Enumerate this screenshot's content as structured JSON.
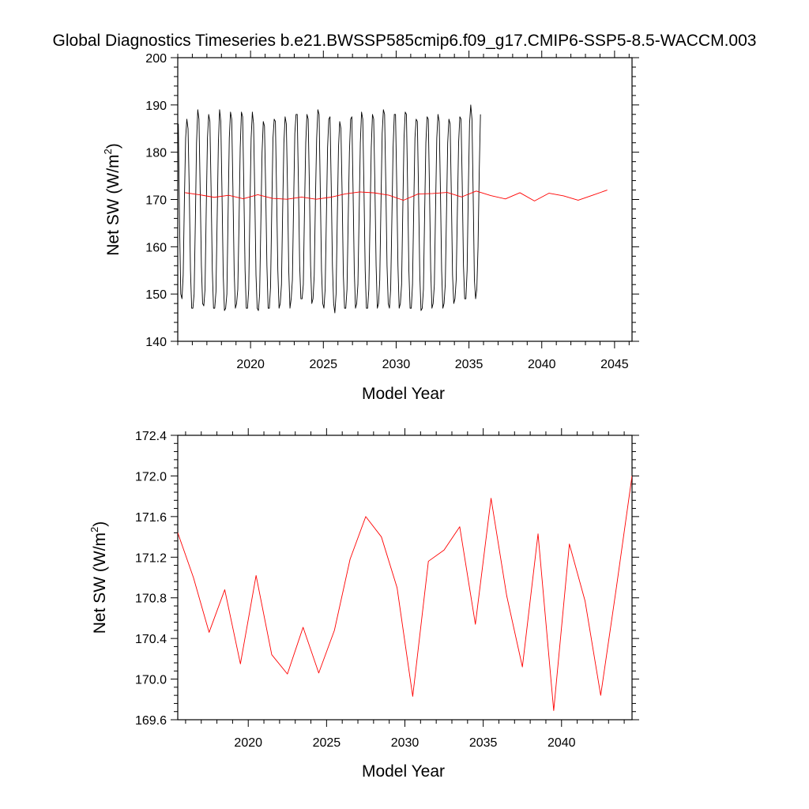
{
  "title": "Global Diagnostics Timeseries b.e21.BWSSP585cmip6.f09_g17.CMIP6-SSP5-8.5-WACCM.003",
  "chart_data": [
    {
      "type": "line",
      "xlabel": "Model Year",
      "ylabel_main": "Net SW (W/m",
      "ylabel_sup": "2",
      "ylabel_close": ")",
      "xlim": [
        2015,
        2046.2
      ],
      "ylim": [
        140,
        200
      ],
      "xticks": [
        2020,
        2025,
        2030,
        2035,
        2040,
        2045
      ],
      "yticks": [
        140,
        150,
        160,
        170,
        180,
        190,
        200
      ],
      "grid": false,
      "series": [
        {
          "color": "#000000",
          "x_start": 2015.04,
          "x_step": 0.083333,
          "values": [
            186.0,
            165.0,
            150.0,
            149.0,
            154.0,
            170.0,
            183.0,
            187.0,
            185.0,
            172.0,
            155.0,
            147.0,
            147.0,
            150.0,
            165.0,
            182.0,
            189.0,
            187.0,
            172.0,
            156.0,
            148.0,
            147.5,
            151.0,
            168.0,
            183.0,
            188.0,
            186.5,
            172.0,
            155.0,
            147.0,
            147.0,
            150.5,
            166.0,
            182.0,
            189.0,
            186.5,
            171.0,
            154.0,
            146.5,
            147.0,
            150.0,
            167.0,
            183.0,
            188.5,
            187.0,
            172.0,
            155.0,
            147.0,
            148.0,
            151.0,
            165.0,
            181.0,
            188.5,
            187.5,
            172.0,
            155.0,
            147.0,
            147.0,
            151.0,
            168.0,
            183.0,
            188.5,
            186.0,
            171.0,
            154.0,
            147.0,
            146.5,
            150.0,
            165.0,
            180.0,
            186.5,
            185.5,
            172.0,
            156.0,
            147.0,
            147.0,
            151.5,
            168.0,
            183.0,
            187.0,
            186.5,
            171.0,
            155.0,
            147.0,
            148.0,
            152.0,
            168.0,
            182.0,
            187.5,
            186.0,
            172.0,
            155.0,
            147.0,
            149.0,
            153.0,
            169.0,
            184.0,
            188.0,
            188.0,
            173.0,
            156.0,
            149.0,
            149.0,
            152.0,
            168.0,
            182.0,
            188.0,
            187.0,
            173.0,
            156.0,
            148.0,
            149.0,
            154.0,
            170.0,
            183.0,
            189.0,
            188.0,
            172.0,
            155.0,
            148.0,
            147.0,
            151.0,
            166.0,
            181.0,
            187.0,
            187.5,
            173.0,
            156.0,
            148.0,
            146.0,
            150.0,
            166.0,
            181.0,
            186.5,
            185.0,
            171.0,
            154.0,
            147.0,
            147.0,
            151.0,
            166.0,
            180.0,
            187.0,
            187.5,
            172.0,
            155.0,
            147.0,
            148.0,
            152.0,
            167.0,
            182.0,
            188.5,
            187.0,
            172.0,
            155.0,
            147.0,
            147.0,
            151.0,
            166.0,
            181.0,
            188.0,
            187.0,
            173.0,
            156.0,
            147.0,
            148.0,
            153.0,
            169.0,
            184.0,
            189.0,
            188.0,
            173.0,
            156.0,
            148.0,
            147.0,
            151.0,
            166.0,
            181.0,
            188.0,
            188.0,
            173.0,
            156.0,
            147.0,
            148.0,
            152.0,
            168.0,
            183.0,
            188.5,
            188.0,
            172.0,
            155.0,
            147.0,
            147.0,
            152.0,
            168.0,
            183.0,
            187.0,
            186.5,
            171.0,
            154.0,
            146.5,
            147.0,
            151.0,
            167.0,
            182.0,
            187.5,
            187.0,
            172.0,
            155.0,
            147.0,
            148.0,
            152.0,
            168.0,
            183.0,
            188.0,
            186.5,
            172.0,
            155.0,
            147.0,
            148.0,
            152.0,
            167.0,
            182.0,
            187.0,
            186.0,
            171.0,
            154.0,
            148.0,
            149.0,
            153.0,
            168.0,
            182.0,
            187.5,
            187.0,
            173.0,
            156.0,
            149.0,
            149.0,
            155.0,
            172.0,
            186.0,
            190.0,
            187.0,
            171.0,
            153.0,
            149.0,
            151.0,
            160.0,
            176.0,
            188.0
          ]
        },
        {
          "color": "#ff0000",
          "x": [
            2015.5,
            2016.5,
            2017.5,
            2018.5,
            2019.5,
            2020.5,
            2021.5,
            2022.5,
            2023.5,
            2024.5,
            2025.5,
            2026.5,
            2027.5,
            2028.5,
            2029.5,
            2030.5,
            2031.5,
            2032.5,
            2033.5,
            2034.5,
            2035.5,
            2036.5,
            2037.5,
            2038.5,
            2039.5,
            2040.5,
            2041.5,
            2042.5,
            2043.5,
            2044.5
          ],
          "values": [
            171.44,
            171.0,
            170.46,
            170.88,
            170.15,
            171.02,
            170.24,
            170.05,
            170.51,
            170.06,
            170.48,
            171.18,
            171.6,
            171.4,
            170.9,
            169.83,
            171.16,
            171.27,
            171.5,
            170.54,
            171.78,
            170.82,
            170.12,
            171.43,
            169.69,
            171.33,
            170.77,
            169.84,
            170.9,
            172.0
          ]
        }
      ]
    },
    {
      "type": "line",
      "xlabel": "Model Year",
      "ylabel_main": "Net SW (W/m",
      "ylabel_sup": "2",
      "ylabel_close": ")",
      "xlim": [
        2015.5,
        2044.5
      ],
      "ylim": [
        169.6,
        172.4
      ],
      "xticks": [
        2020,
        2025,
        2030,
        2035,
        2040
      ],
      "yticks": [
        169.6,
        170.0,
        170.4,
        170.8,
        171.2,
        171.6,
        172.0,
        172.4
      ],
      "ytick_labels": [
        "169.6",
        "170.0",
        "170.4",
        "170.8",
        "171.2",
        "171.6",
        "172.0",
        "172.4"
      ],
      "grid": false,
      "series": [
        {
          "color": "#ff0000",
          "x": [
            2015.5,
            2016.5,
            2017.5,
            2018.5,
            2019.5,
            2020.5,
            2021.5,
            2022.5,
            2023.5,
            2024.5,
            2025.5,
            2026.5,
            2027.5,
            2028.5,
            2029.5,
            2030.5,
            2031.5,
            2032.5,
            2033.5,
            2034.5,
            2035.5,
            2036.5,
            2037.5,
            2038.5,
            2039.5,
            2040.5,
            2041.5,
            2042.5,
            2043.5,
            2044.5
          ],
          "values": [
            171.44,
            171.0,
            170.46,
            170.88,
            170.15,
            171.02,
            170.24,
            170.05,
            170.51,
            170.06,
            170.48,
            171.18,
            171.6,
            171.4,
            170.9,
            169.83,
            171.16,
            171.27,
            171.5,
            170.54,
            171.78,
            170.82,
            170.12,
            171.43,
            169.69,
            171.33,
            170.77,
            169.84,
            170.9,
            172.0
          ]
        }
      ]
    }
  ]
}
